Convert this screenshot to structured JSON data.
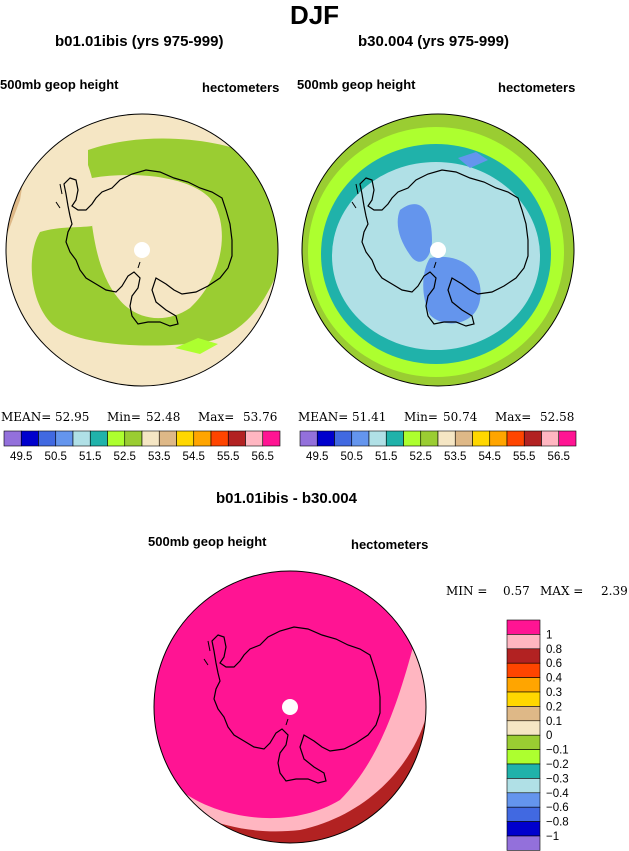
{
  "title": "DJF",
  "panels": [
    {
      "title": "b01.01ibis (yrs 975-999)",
      "left_label": "500mb geop height",
      "right_label": "hectometers",
      "stats": {
        "mean_label": "MEAN=",
        "mean": "52.95",
        "min_label": "Min=",
        "min": "52.48",
        "max_label": "Max=",
        "max": "53.76"
      }
    },
    {
      "title": "b30.004 (yrs 975-999)",
      "left_label": "500mb geop height",
      "right_label": "hectometers",
      "stats": {
        "mean_label": "MEAN=",
        "mean": "51.41",
        "min_label": "Min=",
        "min": "50.74",
        "max_label": "Max=",
        "max": "52.58"
      }
    }
  ],
  "diff_panel": {
    "title": "b01.01ibis - b30.004",
    "left_label": "500mb geop height",
    "right_label": "hectometers",
    "stats": {
      "min_label": "MIN =",
      "min": "0.57",
      "max_label": "MAX =",
      "max": "2.39"
    }
  },
  "chart_data": [
    {
      "type": "heatmap",
      "projection": "south-polar-stereographic",
      "title": "b01.01ibis (yrs 975-999)",
      "variable": "500mb geop height",
      "units": "hectometers",
      "mean": 52.95,
      "min": 52.48,
      "max": 53.76,
      "colorbar_levels": [
        49.5,
        50,
        50.5,
        51,
        51.5,
        52,
        52.5,
        53,
        53.5,
        54,
        54.5,
        55,
        55.5,
        56,
        56.5
      ],
      "colorbar_tick_labels": [
        "49.5",
        "50.5",
        "51.5",
        "52.5",
        "53.5",
        "54.5",
        "55.5",
        "56.5"
      ],
      "colorbar_colors": [
        "#9370DB",
        "#0000CD",
        "#4169E1",
        "#6495ED",
        "#B0E0E6",
        "#20B2AA",
        "#ADFF2F",
        "#9ACD32",
        "#F5E6C4",
        "#DEB887",
        "#FFD700",
        "#FFA500",
        "#FF4500",
        "#B22222",
        "#FFB6C1",
        "#FF1493"
      ],
      "dominant_contours": [
        52.5,
        53,
        53.5,
        54
      ]
    },
    {
      "type": "heatmap",
      "projection": "south-polar-stereographic",
      "title": "b30.004 (yrs 975-999)",
      "variable": "500mb geop height",
      "units": "hectometers",
      "mean": 51.41,
      "min": 50.74,
      "max": 52.58,
      "colorbar_levels": [
        49.5,
        50,
        50.5,
        51,
        51.5,
        52,
        52.5,
        53,
        53.5,
        54,
        54.5,
        55,
        55.5,
        56,
        56.5
      ],
      "colorbar_tick_labels": [
        "49.5",
        "50.5",
        "51.5",
        "52.5",
        "53.5",
        "54.5",
        "55.5",
        "56.5"
      ],
      "colorbar_colors": [
        "#9370DB",
        "#0000CD",
        "#4169E1",
        "#6495ED",
        "#B0E0E6",
        "#20B2AA",
        "#ADFF2F",
        "#9ACD32",
        "#F5E6C4",
        "#DEB887",
        "#FFD700",
        "#FFA500",
        "#FF4500",
        "#B22222",
        "#FFB6C1",
        "#FF1493"
      ],
      "dominant_contours": [
        50.5,
        51,
        51.5,
        52,
        52.5,
        53
      ]
    },
    {
      "type": "heatmap",
      "projection": "south-polar-stereographic",
      "title": "b01.01ibis - b30.004",
      "variable": "500mb geop height",
      "units": "hectometers",
      "min": 0.57,
      "max": 2.39,
      "colorbar_labels_top_to_bottom": [
        "1",
        "0.8",
        "0.6",
        "0.4",
        "0.3",
        "0.2",
        "0.1",
        "0",
        "−0.1",
        "−0.2",
        "−0.3",
        "−0.4",
        "−0.6",
        "−0.8",
        "−1"
      ],
      "colorbar_colors_top_to_bottom": [
        "#FF1493",
        "#FFB6C1",
        "#B22222",
        "#FF4500",
        "#FFA500",
        "#FFD700",
        "#DEB887",
        "#F5E6C4",
        "#9ACD32",
        "#ADFF2F",
        "#20B2AA",
        "#B0E0E6",
        "#6495ED",
        "#4169E1",
        "#0000CD",
        "#9370DB"
      ]
    }
  ]
}
